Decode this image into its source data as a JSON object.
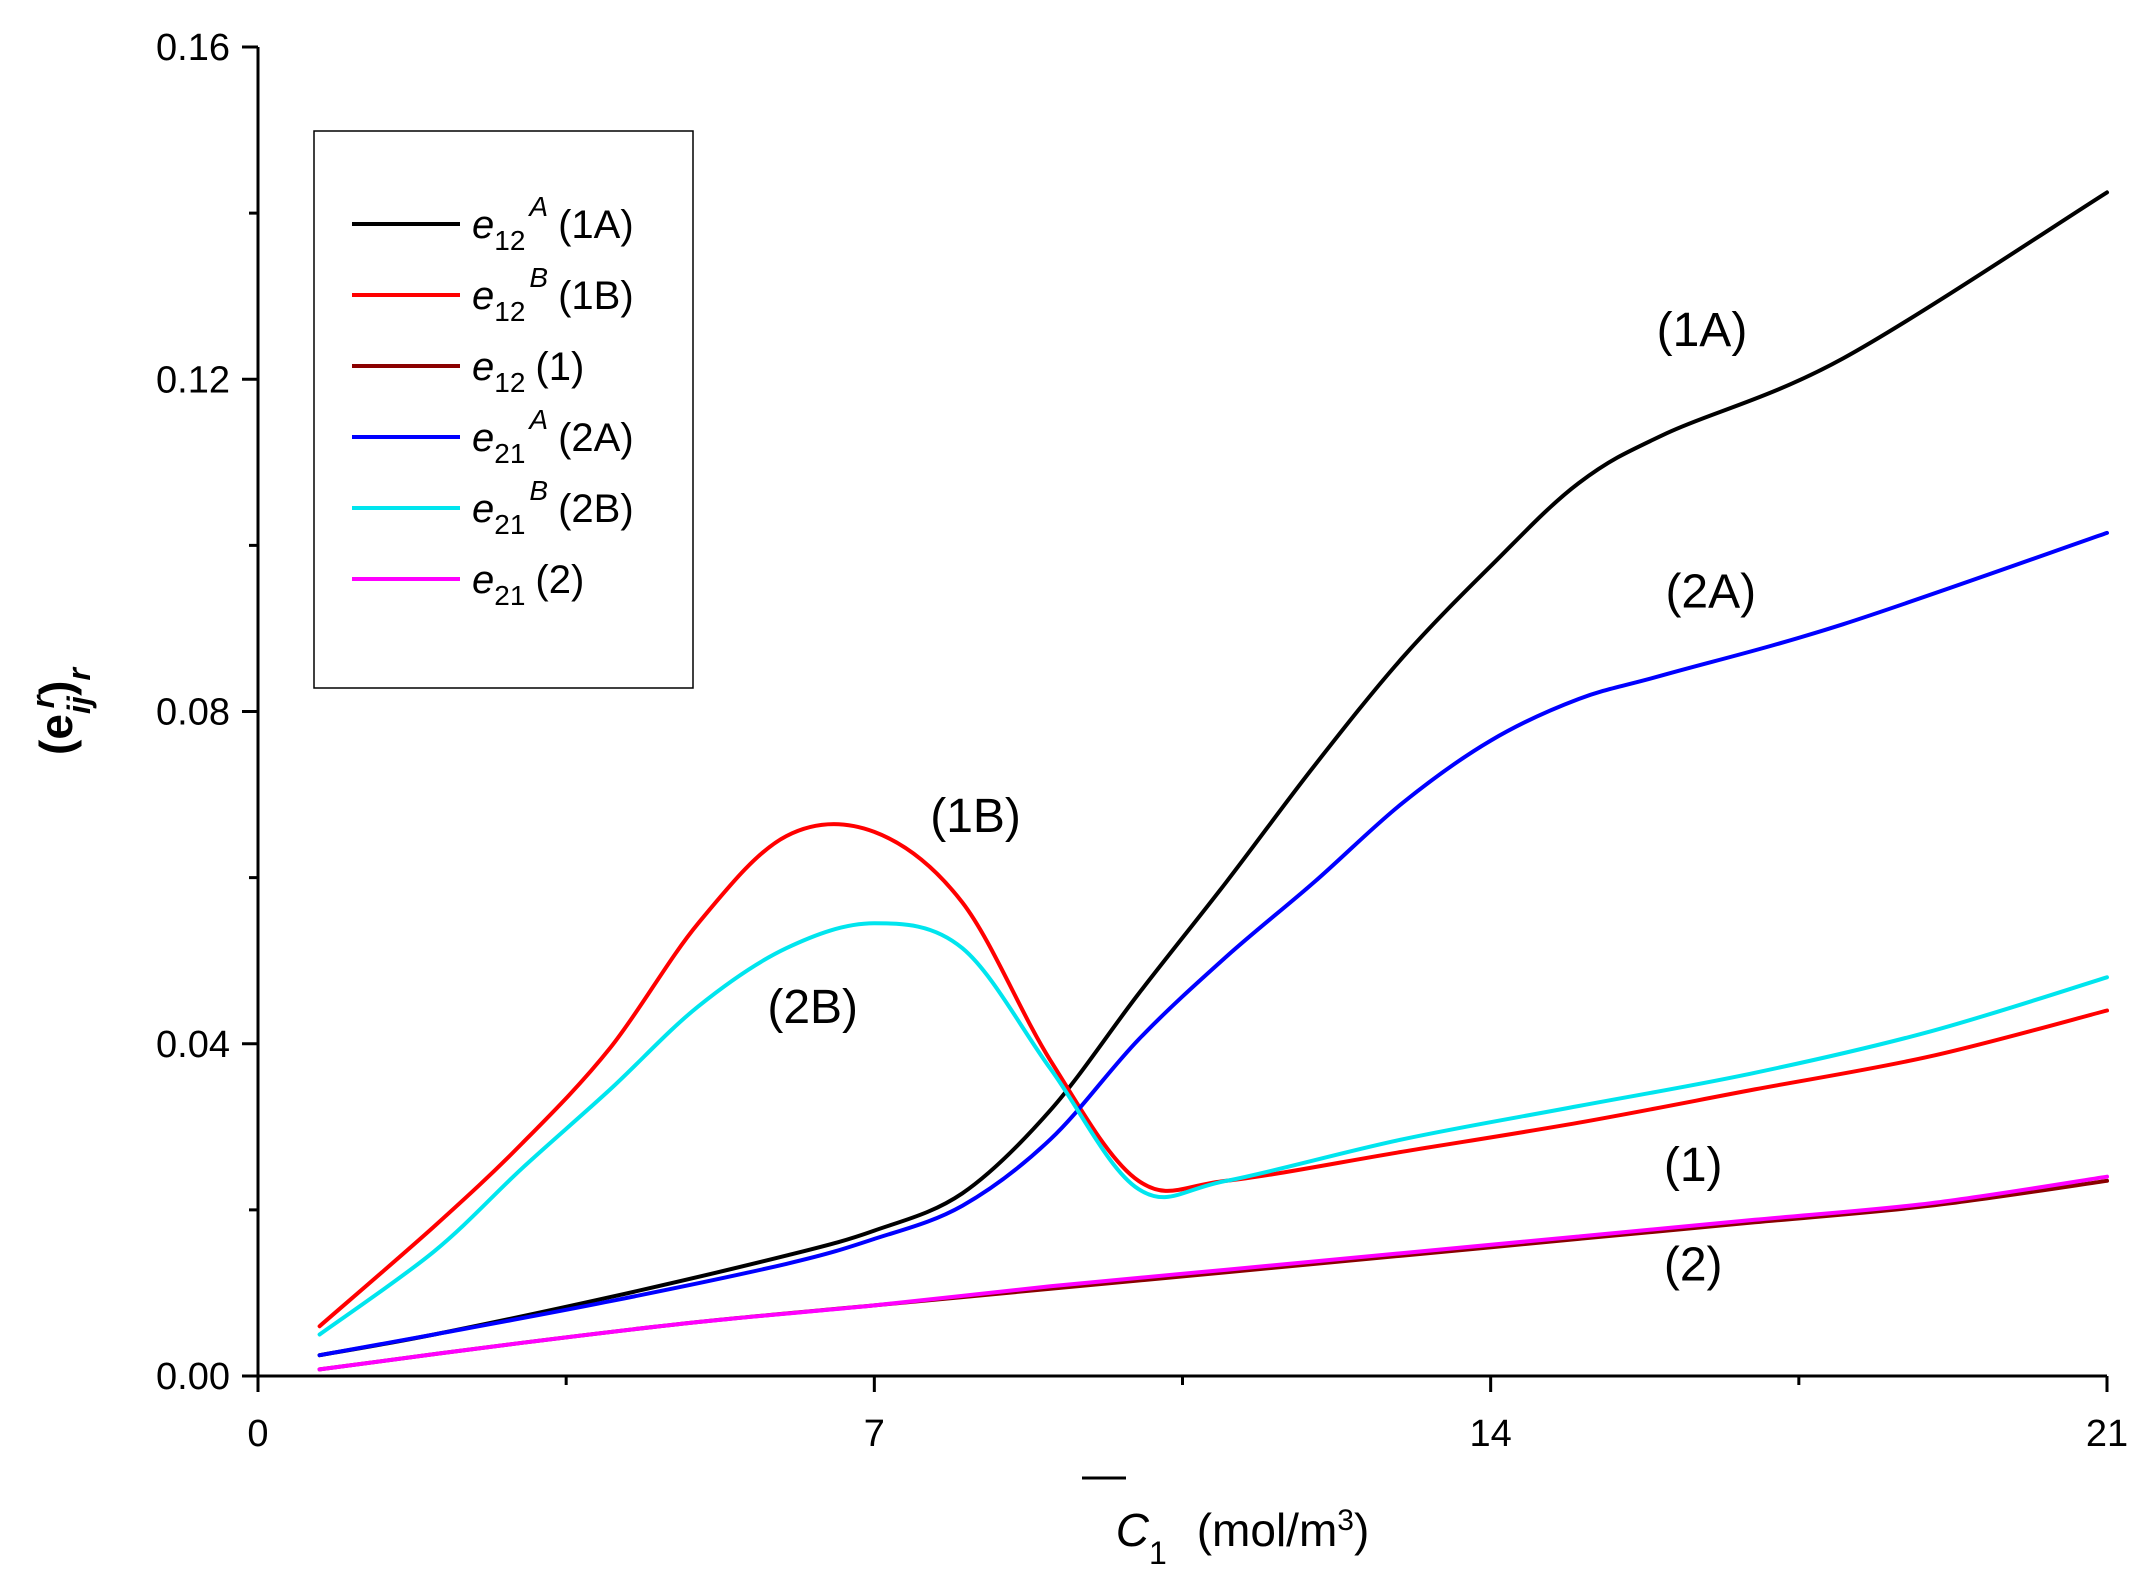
{
  "chart_data": {
    "type": "line",
    "title": "",
    "xlabel": {
      "symbol": "C",
      "sub": "1",
      "units_prefix": "(mol/m",
      "units_sup": "3",
      "units_suffix": ")"
    },
    "ylabel": {
      "open": "(e",
      "sub": "ij",
      "sup": "r",
      "close": ")",
      "outer_sub": "r"
    },
    "xlim": [
      0,
      21
    ],
    "ylim": [
      0,
      0.16
    ],
    "xticks": [
      {
        "value": 0,
        "label": "0"
      },
      {
        "value": 7,
        "label": "7"
      },
      {
        "value": 14,
        "label": "14"
      },
      {
        "value": 21,
        "label": "21"
      }
    ],
    "xminor": [
      3.5,
      10.5,
      17.5
    ],
    "yticks": [
      {
        "value": 0,
        "label": "0.00"
      },
      {
        "value": 0.04,
        "label": "0.04"
      },
      {
        "value": 0.08,
        "label": "0.08"
      },
      {
        "value": 0.12,
        "label": "0.12"
      },
      {
        "value": 0.16,
        "label": "0.16"
      }
    ],
    "yminor": [
      0.02,
      0.06,
      0.1,
      0.14
    ],
    "legend_position": "top-left",
    "series": [
      {
        "id": "e12A",
        "color": "#000000",
        "legend": {
          "base": "e",
          "sub": "12",
          "sup": "A",
          "tag": "(1A)"
        },
        "x": [
          0.7,
          2,
          4,
          6,
          7,
          8,
          9,
          10,
          11,
          12,
          13,
          14,
          15,
          16,
          18,
          21
        ],
        "y": [
          0.0025,
          0.005,
          0.0095,
          0.0145,
          0.0175,
          0.022,
          0.032,
          0.046,
          0.0595,
          0.0735,
          0.0865,
          0.0975,
          0.1075,
          0.1135,
          0.1225,
          0.1425
        ]
      },
      {
        "id": "e12B",
        "color": "#ff0000",
        "legend": {
          "base": "e",
          "sub": "12",
          "sup": "B",
          "tag": "(1B)"
        },
        "x": [
          0.7,
          2,
          3,
          4,
          5,
          6,
          7,
          8,
          9,
          10,
          11,
          13,
          15,
          17,
          19,
          21
        ],
        "y": [
          0.006,
          0.018,
          0.028,
          0.0395,
          0.0545,
          0.065,
          0.0655,
          0.057,
          0.038,
          0.0235,
          0.0235,
          0.027,
          0.0305,
          0.0345,
          0.0385,
          0.044
        ]
      },
      {
        "id": "e12",
        "color": "#8b0000",
        "legend": {
          "base": "e",
          "sub": "12",
          "sup": "",
          "tag": "(1)"
        },
        "x": [
          0.7,
          3,
          5,
          7,
          9,
          11,
          13,
          15,
          17,
          19,
          21
        ],
        "y": [
          0.0008,
          0.004,
          0.0065,
          0.0085,
          0.0105,
          0.0125,
          0.0145,
          0.0165,
          0.0185,
          0.0205,
          0.0235
        ]
      },
      {
        "id": "e21A",
        "color": "#0000ff",
        "legend": {
          "base": "e",
          "sub": "21",
          "sup": "A",
          "tag": "(2A)"
        },
        "x": [
          0.7,
          2,
          4,
          6,
          7,
          8,
          9,
          10,
          11,
          12,
          13,
          14,
          15,
          16,
          18,
          21
        ],
        "y": [
          0.0025,
          0.005,
          0.009,
          0.0135,
          0.0165,
          0.0205,
          0.0285,
          0.0405,
          0.0505,
          0.0595,
          0.069,
          0.0765,
          0.0815,
          0.0845,
          0.0905,
          0.1015
        ]
      },
      {
        "id": "e21B",
        "color": "#00e5ee",
        "legend": {
          "base": "e",
          "sub": "21",
          "sup": "B",
          "tag": "(2B)"
        },
        "x": [
          0.7,
          2,
          3,
          4,
          5,
          6,
          7,
          8,
          9,
          10,
          11,
          13,
          15,
          17,
          19,
          21
        ],
        "y": [
          0.005,
          0.015,
          0.025,
          0.0345,
          0.0445,
          0.0515,
          0.0545,
          0.0515,
          0.037,
          0.0225,
          0.0235,
          0.0285,
          0.0325,
          0.0365,
          0.0415,
          0.048
        ]
      },
      {
        "id": "e21",
        "color": "#ff00ff",
        "legend": {
          "base": "e",
          "sub": "21",
          "sup": "",
          "tag": "(2)"
        },
        "x": [
          0.7,
          3,
          5,
          7,
          9,
          11,
          13,
          15,
          17,
          19,
          21
        ],
        "y": [
          0.0008,
          0.004,
          0.0065,
          0.0085,
          0.0108,
          0.0128,
          0.0148,
          0.0168,
          0.0188,
          0.0208,
          0.024
        ]
      }
    ],
    "annotations": [
      {
        "text": "(1A)",
        "x": 16.4,
        "y": 0.124
      },
      {
        "text": "(2A)",
        "x": 16.5,
        "y": 0.0925
      },
      {
        "text": "(1B)",
        "x": 8.15,
        "y": 0.0655
      },
      {
        "text": "(2B)",
        "x": 6.3,
        "y": 0.0425
      },
      {
        "text": "(1)",
        "x": 16.3,
        "y": 0.0235
      },
      {
        "text": "(2)",
        "x": 16.3,
        "y": 0.0115
      }
    ]
  }
}
